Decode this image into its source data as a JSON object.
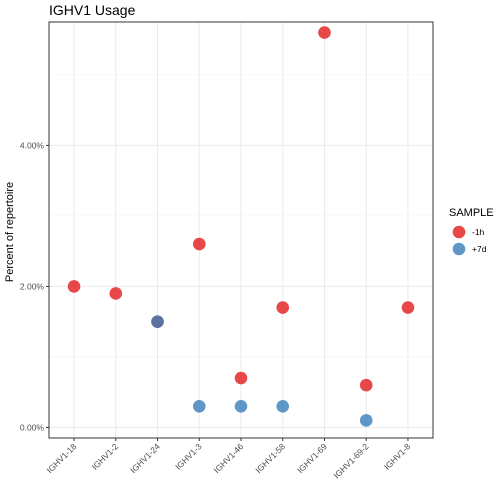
{
  "chart_data": {
    "type": "scatter",
    "title": "IGHV1 Usage",
    "xlabel": "",
    "ylabel": "Percent of repertoire",
    "categories": [
      "IGHV1-18",
      "IGHV1-2",
      "IGHV1-24",
      "IGHV1-3",
      "IGHV1-46",
      "IGHV1-58",
      "IGHV1-69",
      "IGHV1-69-2",
      "IGHV1-8"
    ],
    "y_ticks": [
      0,
      2,
      4
    ],
    "y_tick_labels": [
      "0.00%",
      "2.00%",
      "4.00%"
    ],
    "ylim": [
      -0.15,
      5.75
    ],
    "grid": true,
    "legend": {
      "title": "SAMPLE",
      "position": "right"
    },
    "series": [
      {
        "name": "-1h",
        "color": "#E41A1C",
        "points": [
          {
            "x": "IGHV1-18",
            "y": 2.0
          },
          {
            "x": "IGHV1-2",
            "y": 1.9
          },
          {
            "x": "IGHV1-24",
            "y": 1.5
          },
          {
            "x": "IGHV1-3",
            "y": 2.6
          },
          {
            "x": "IGHV1-46",
            "y": 0.7
          },
          {
            "x": "IGHV1-58",
            "y": 1.7
          },
          {
            "x": "IGHV1-69",
            "y": 5.6
          },
          {
            "x": "IGHV1-69-2",
            "y": 0.6
          },
          {
            "x": "IGHV1-8",
            "y": 1.7
          }
        ]
      },
      {
        "name": "+7d",
        "color": "#377EB8",
        "points": [
          {
            "x": "IGHV1-24",
            "y": 1.5
          },
          {
            "x": "IGHV1-3",
            "y": 0.3
          },
          {
            "x": "IGHV1-46",
            "y": 0.3
          },
          {
            "x": "IGHV1-58",
            "y": 0.3
          },
          {
            "x": "IGHV1-69-2",
            "y": 0.1
          }
        ]
      }
    ]
  }
}
